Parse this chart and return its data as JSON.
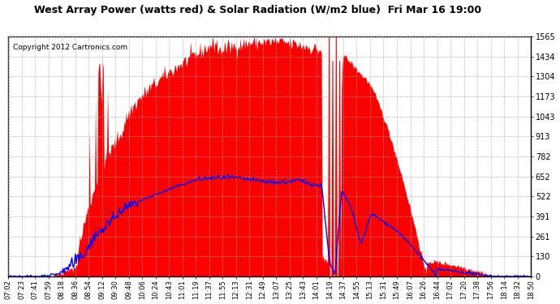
{
  "title": "West Array Power (watts red) & Solar Radiation (W/m2 blue)  Fri Mar 16 19:00",
  "copyright": "Copyright 2012 Cartronics.com",
  "y_ticks": [
    0.0,
    130.4,
    260.8,
    391.1,
    521.5,
    651.9,
    782.3,
    912.7,
    1043.1,
    1173.4,
    1303.8,
    1434.2,
    1564.6
  ],
  "x_labels": [
    "07:02",
    "07:23",
    "07:41",
    "07:59",
    "08:18",
    "08:36",
    "08:54",
    "09:12",
    "09:30",
    "09:48",
    "10:06",
    "10:24",
    "10:43",
    "11:01",
    "11:19",
    "11:37",
    "11:55",
    "12:13",
    "12:31",
    "12:49",
    "13:07",
    "13:25",
    "13:43",
    "14:01",
    "14:19",
    "14:37",
    "14:55",
    "15:13",
    "15:31",
    "15:49",
    "16:07",
    "16:26",
    "16:44",
    "17:02",
    "17:20",
    "17:38",
    "17:56",
    "18:14",
    "18:32",
    "18:50"
  ],
  "bg_color": "#ffffff",
  "plot_bg_color": "#ffffff",
  "grid_color": "#aaaaaa",
  "red_fill_color": "#ff0000",
  "blue_line_color": "#0000ff",
  "title_color": "#000000",
  "border_color": "#000000",
  "ymax": 1564.6,
  "n_points": 600
}
